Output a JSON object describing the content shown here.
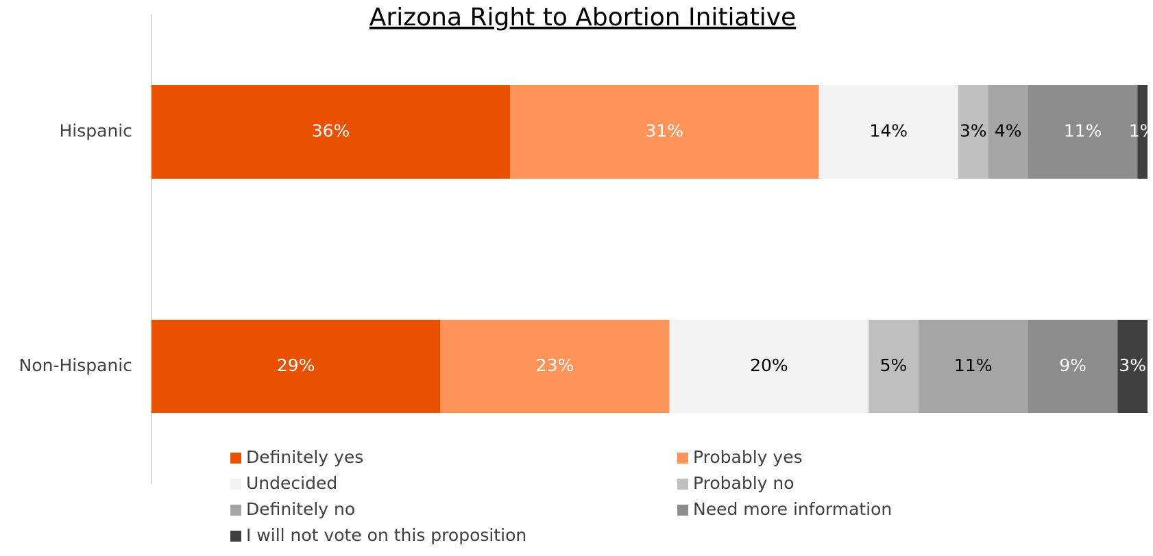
{
  "chart_data": {
    "type": "stacked_bar_horizontal",
    "title": "Arizona Right to Abortion Initiative",
    "categories": [
      "Hispanic",
      "Non-Hispanic"
    ],
    "xlim": [
      0,
      100
    ],
    "series": [
      {
        "name": "Definitely yes",
        "color": "#E85100",
        "label_color": "#ffffff",
        "values": [
          36,
          29
        ],
        "value_labels": [
          "36%",
          "29%"
        ]
      },
      {
        "name": "Probably yes",
        "color": "#FF945A",
        "label_color": "#ffffff",
        "values": [
          31,
          23
        ],
        "value_labels": [
          "31%",
          "23%"
        ]
      },
      {
        "name": "Undecided",
        "color": "#F2F2F2",
        "label_color": "#000000",
        "values": [
          14,
          20
        ],
        "value_labels": [
          "14%",
          "20%"
        ]
      },
      {
        "name": "Probably no",
        "color": "#BFBFBF",
        "label_color": "#000000",
        "values": [
          3,
          5
        ],
        "value_labels": [
          "3%",
          "5%"
        ]
      },
      {
        "name": "Definitely no",
        "color": "#A5A5A5",
        "label_color": "#000000",
        "values": [
          4,
          11
        ],
        "value_labels": [
          "4%",
          "11%"
        ]
      },
      {
        "name": "Need more information",
        "color": "#8C8C8C",
        "label_color": "#ffffff",
        "values": [
          11,
          9
        ],
        "value_labels": [
          "11%",
          "9%"
        ]
      },
      {
        "name": "I will not vote on this proposition",
        "color": "#404040",
        "label_color": "#ffffff",
        "values": [
          1,
          3
        ],
        "value_labels": [
          "1%",
          "3%"
        ]
      }
    ]
  }
}
